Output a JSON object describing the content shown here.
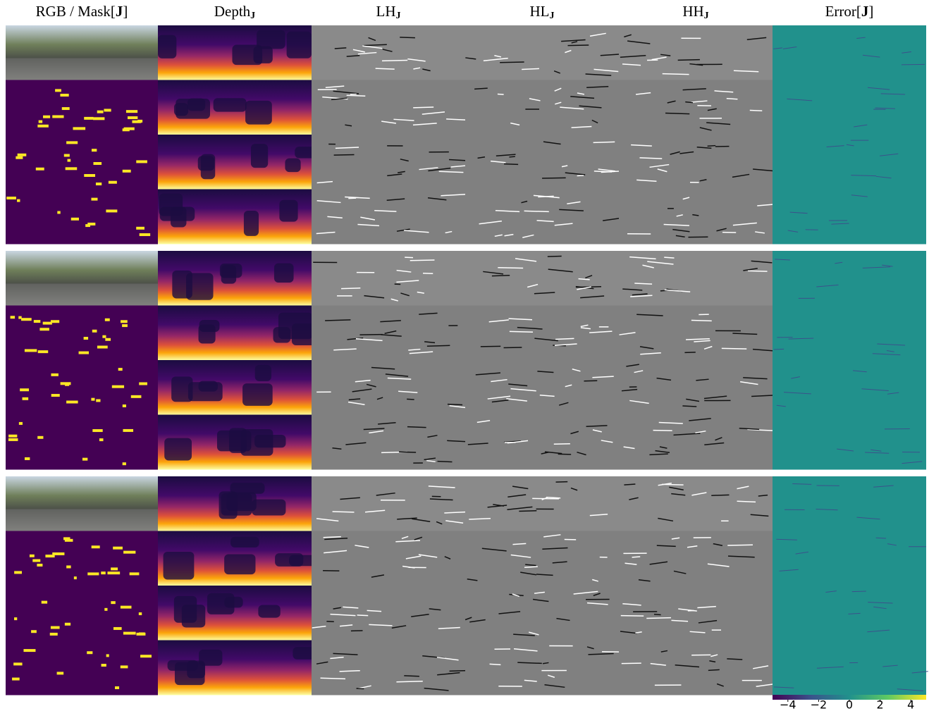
{
  "figure": {
    "headers": [
      {
        "text": "RGB / Mask[",
        "bold": "J",
        "after": "]"
      },
      {
        "text": "Depth",
        "sub": "J"
      },
      {
        "text": "LH",
        "sub": "J"
      },
      {
        "text": "HL",
        "sub": "J"
      },
      {
        "text": "HH",
        "sub": "J"
      },
      {
        "text": "Error[",
        "bold": "J",
        "after": "]"
      }
    ],
    "colorbar": {
      "lim": [
        -5,
        5
      ],
      "ticks": [
        {
          "value": -4,
          "label": "−4"
        },
        {
          "value": -2,
          "label": "−2"
        },
        0,
        2,
        4
      ]
    }
  }
}
